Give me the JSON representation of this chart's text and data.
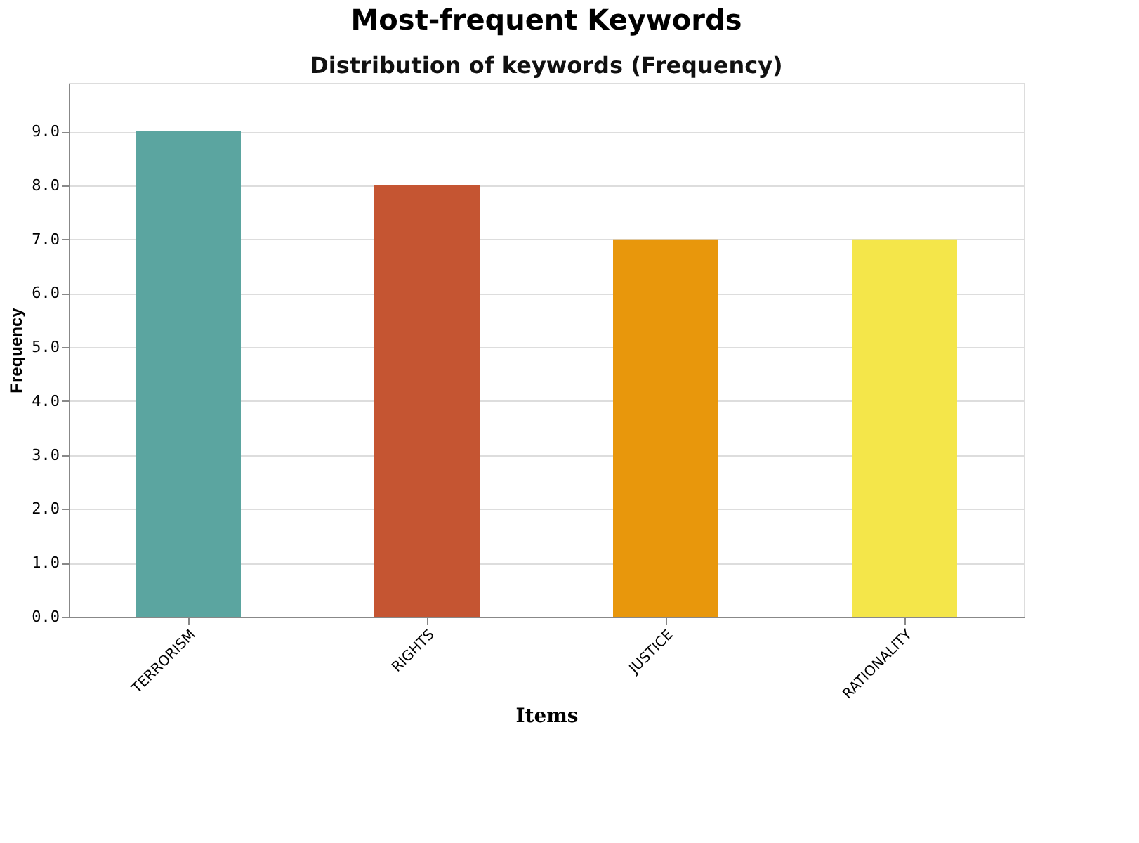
{
  "chart_data": {
    "type": "bar",
    "title": "Most-frequent Keywords",
    "subtitle": "Distribution of keywords (Frequency)",
    "xlabel": "Items",
    "ylabel": "Frequency",
    "categories": [
      "TERRORISM",
      "RIGHTS",
      "JUSTICE",
      "RATIONALITY"
    ],
    "values": [
      9,
      8,
      7,
      7
    ],
    "colors": [
      "#5ba5a0",
      "#c55532",
      "#e8970c",
      "#f4e64a"
    ],
    "ylim": [
      0,
      9.9
    ],
    "yticks": [
      {
        "value": 0,
        "label": "0.0"
      },
      {
        "value": 1,
        "label": "1.0"
      },
      {
        "value": 2,
        "label": "2.0"
      },
      {
        "value": 3,
        "label": "3.0"
      },
      {
        "value": 4,
        "label": "4.0"
      },
      {
        "value": 5,
        "label": "5.0"
      },
      {
        "value": 6,
        "label": "6.0"
      },
      {
        "value": 7,
        "label": "7.0"
      },
      {
        "value": 8,
        "label": "8.0"
      },
      {
        "value": 9,
        "label": "9.0"
      }
    ],
    "grid": "y",
    "legend": false
  }
}
